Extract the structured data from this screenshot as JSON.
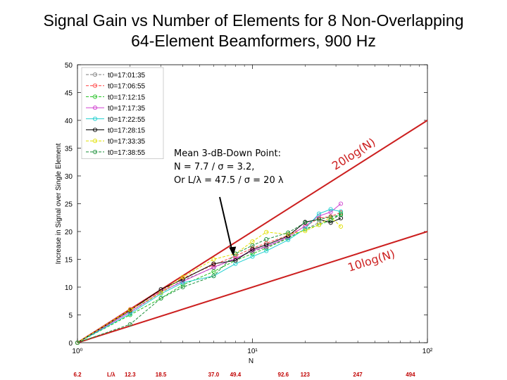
{
  "title_lines": [
    "Signal Gain vs Number of Elements for 8 Non-Overlapping",
    "64-Element Beamformers, 900 Hz"
  ],
  "chart_data": {
    "type": "line",
    "xscale": "log",
    "xlim": [
      1,
      100
    ],
    "ylim": [
      0,
      50
    ],
    "xlabel": "N",
    "ylabel": "Increase in Signal over Single Element",
    "x_tick_labels": [
      "10⁰",
      "10¹",
      "10²"
    ],
    "y_ticks": [
      0,
      5,
      10,
      15,
      20,
      25,
      30,
      35,
      40,
      45,
      50
    ],
    "grid": false,
    "legend_position": "top-left",
    "x": [
      1,
      2,
      3,
      4,
      6,
      8,
      10,
      12,
      16,
      20,
      24,
      28,
      32
    ],
    "series": [
      {
        "name": "t0=17:01:35",
        "color": "#7f7f7f",
        "style": "dashed",
        "values": [
          0,
          5.5,
          9.0,
          11.2,
          13.5,
          15.2,
          16.4,
          17.2,
          18.9,
          20.4,
          21.6,
          22.1,
          23.0
        ]
      },
      {
        "name": "t0=17:06:55",
        "color": "#ff4040",
        "style": "dashed",
        "values": [
          0,
          6.0,
          9.3,
          11.6,
          14.0,
          15.6,
          17.0,
          17.9,
          19.3,
          20.9,
          22.4,
          22.7,
          23.4
        ]
      },
      {
        "name": "t0=17:12:15",
        "color": "#1fc01f",
        "style": "dashed",
        "values": [
          0,
          5.0,
          8.0,
          10.4,
          12.8,
          14.8,
          16.0,
          17.0,
          18.8,
          20.4,
          21.2,
          22.0,
          23.2
        ]
      },
      {
        "name": "t0=17:17:35",
        "color": "#d040d0",
        "style": "solid",
        "values": [
          0,
          5.5,
          9.2,
          11.0,
          13.6,
          15.1,
          16.6,
          17.3,
          19.0,
          21.0,
          22.8,
          23.5,
          25.0
        ]
      },
      {
        "name": "t0=17:22:55",
        "color": "#1ecfcf",
        "style": "solid",
        "values": [
          0,
          5.2,
          8.8,
          10.8,
          12.0,
          14.2,
          15.5,
          16.5,
          18.5,
          20.5,
          23.2,
          24.0,
          23.6
        ]
      },
      {
        "name": "t0=17:28:15",
        "color": "#000000",
        "style": "solid",
        "values": [
          0,
          5.8,
          9.6,
          11.4,
          14.2,
          14.8,
          16.8,
          17.6,
          19.2,
          21.7,
          22.2,
          21.6,
          22.4
        ]
      },
      {
        "name": "t0=17:33:35",
        "color": "#e0e000",
        "style": "dashed",
        "values": [
          0,
          5.9,
          9.0,
          11.8,
          15.0,
          16.0,
          18.2,
          19.9,
          19.5,
          20.1,
          21.2,
          22.6,
          20.9
        ]
      },
      {
        "name": "t0=17:38:55",
        "color": "#1b8f3a",
        "style": "dashed",
        "values": [
          0,
          3.3,
          8.0,
          10.0,
          12.0,
          16.0,
          17.5,
          18.6,
          19.8,
          21.6,
          22.2,
          22.6,
          23.0
        ]
      }
    ],
    "reference_lines": [
      {
        "label": "20log(N)",
        "color": "#cc1f1f",
        "x": [
          1,
          100
        ],
        "y": [
          0,
          40
        ]
      },
      {
        "label": "10log(N)",
        "color": "#cc1f1f",
        "x": [
          1,
          100
        ],
        "y": [
          0,
          20
        ]
      }
    ],
    "annotation": {
      "lines": [
        "Mean 3-dB-Down Point:",
        "N = 7.7 / σ = 3.2,",
        "Or L/λ = 47.5 / σ = 20 λ"
      ],
      "arrow_target": {
        "x": 7.7,
        "y": 15.5
      }
    },
    "secondary_axis": {
      "label": "L/λ",
      "values": [
        "6.2",
        "12.3",
        "18.5",
        "37.0",
        "49.4",
        "92.6",
        "123",
        "247",
        "494"
      ],
      "at_n": [
        1,
        2,
        3,
        6,
        8,
        15,
        20,
        40,
        80
      ]
    }
  }
}
